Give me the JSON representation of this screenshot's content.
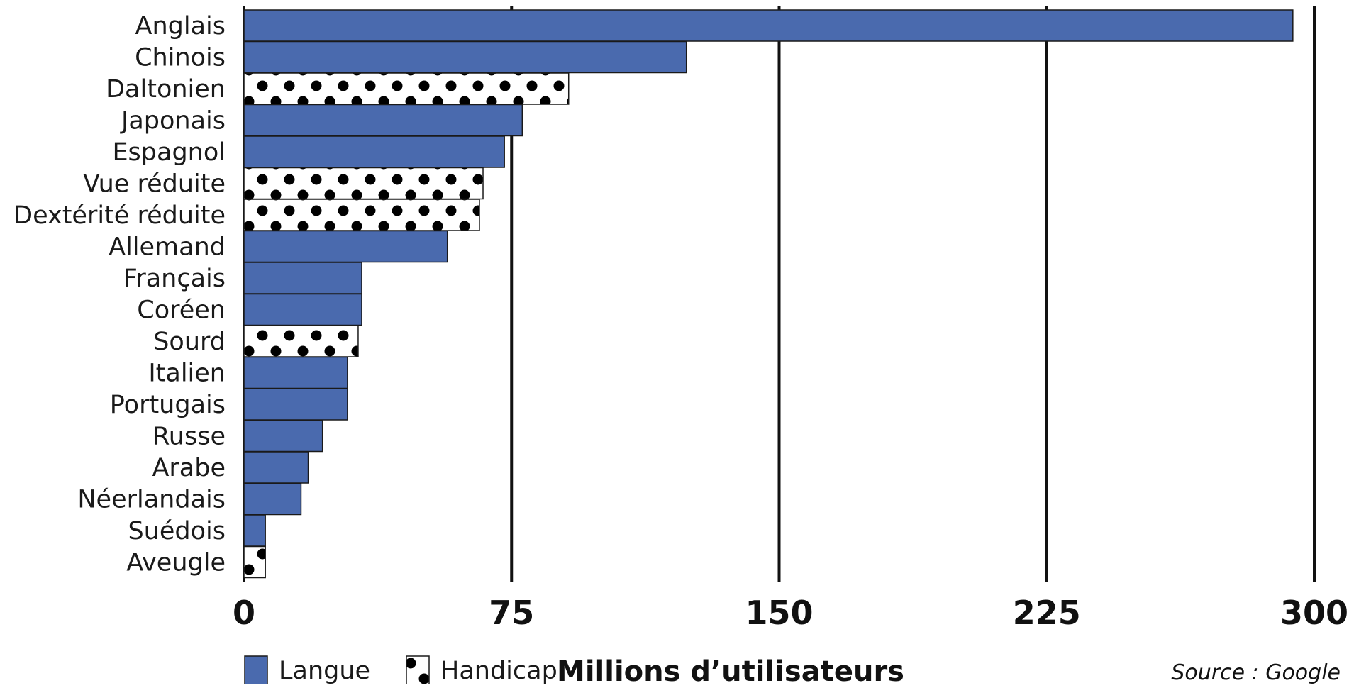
{
  "chart_data": {
    "type": "bar",
    "orientation": "horizontal",
    "categories": [
      "Anglais",
      "Chinois",
      "Daltonien",
      "Japonais",
      "Espagnol",
      "Vue réduite",
      "Dextérité réduite",
      "Allemand",
      "Français",
      "Coréen",
      "Sourd",
      "Italien",
      "Portugais",
      "Russe",
      "Arabe",
      "Néerlandais",
      "Suédois",
      "Aveugle"
    ],
    "values": [
      294,
      124,
      91,
      78,
      73,
      67,
      66,
      57,
      33,
      33,
      32,
      29,
      29,
      22,
      18,
      16,
      6,
      6
    ],
    "groups": [
      "Langue",
      "Langue",
      "Handicap",
      "Langue",
      "Langue",
      "Handicap",
      "Handicap",
      "Langue",
      "Langue",
      "Langue",
      "Handicap",
      "Langue",
      "Langue",
      "Langue",
      "Langue",
      "Langue",
      "Langue",
      "Handicap"
    ],
    "legend": [
      {
        "name": "Langue",
        "pattern": "solid",
        "color": "#4a6aae"
      },
      {
        "name": "Handicap",
        "pattern": "dots",
        "color": "#000000"
      }
    ],
    "legend_placement": "bottom-left",
    "xlabel": "Millions d’utilisateurs",
    "xlim": [
      0,
      300
    ],
    "xticks": [
      0,
      75,
      150,
      225,
      300
    ],
    "xtick_labels": [
      "0",
      "75",
      "150",
      "225",
      "300"
    ],
    "grid": "vertical lines at ticks",
    "source": "Source : Google"
  }
}
